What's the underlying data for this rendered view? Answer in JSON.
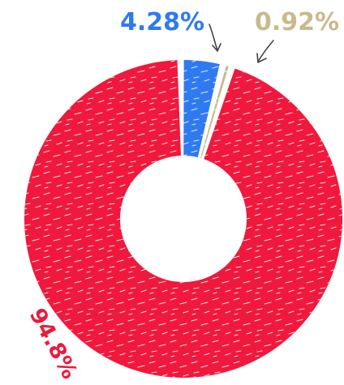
{
  "chart_data": {
    "type": "pie",
    "style": "donut",
    "slices": [
      {
        "label": "94.8%",
        "value": 94.8,
        "color": "#f0183c"
      },
      {
        "label": "4.28%",
        "value": 4.28,
        "color": "#2f7af0"
      },
      {
        "label": "0.92%",
        "value": 0.92,
        "color": "#c9b98c"
      }
    ],
    "background": "#ffffff"
  }
}
